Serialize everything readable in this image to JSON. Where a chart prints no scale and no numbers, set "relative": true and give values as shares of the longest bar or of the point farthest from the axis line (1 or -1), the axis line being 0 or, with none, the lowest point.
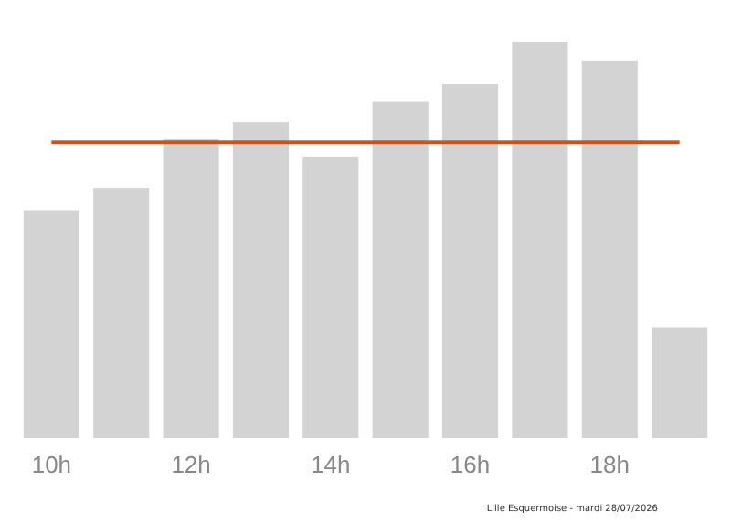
{
  "chart_data": {
    "type": "bar",
    "relative": true,
    "categories": [
      "10h",
      null,
      "12h",
      null,
      "14h",
      null,
      "16h",
      null,
      "18h",
      null
    ],
    "values": [
      0.575,
      0.631,
      0.756,
      0.797,
      0.71,
      0.849,
      0.894,
      1,
      0.952,
      0.28
    ],
    "color": "#d3d3d3",
    "ref_lines": [
      {
        "axis": "y",
        "value": 0.747,
        "color": "#c8531e"
      }
    ],
    "annotations": [
      "Lille Esquermoise - mardi 28/07/2026"
    ]
  }
}
